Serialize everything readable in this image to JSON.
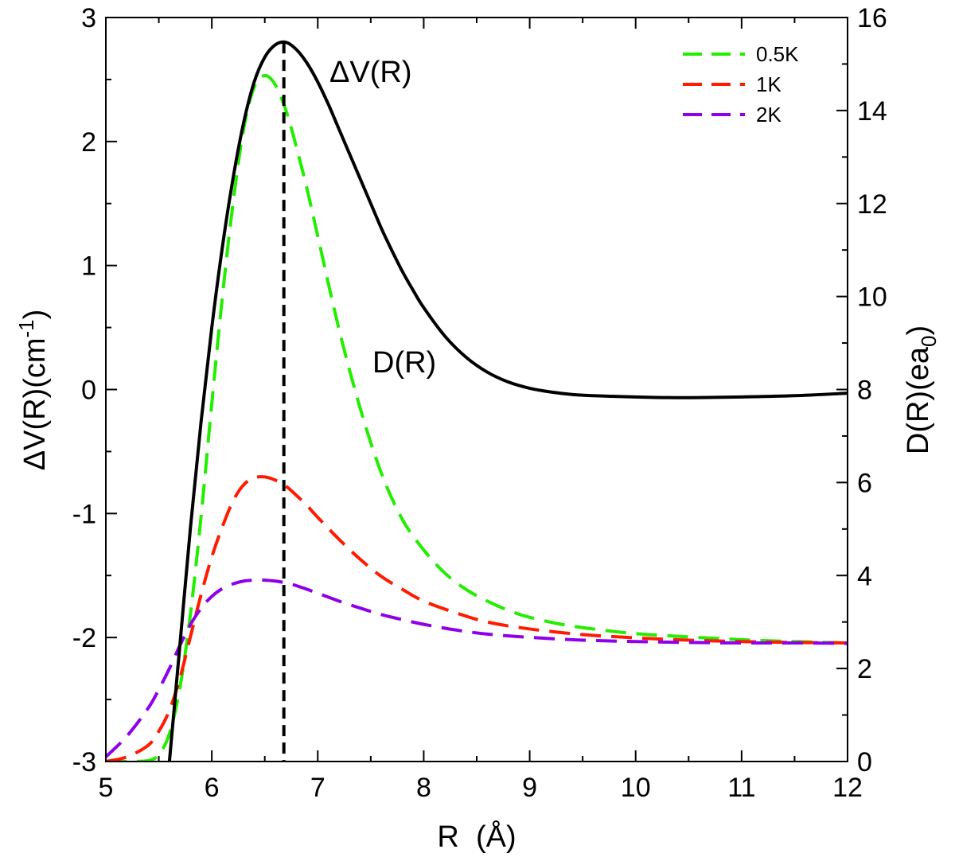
{
  "chart_data": {
    "type": "line",
    "xlabel": "R  (Å)",
    "ylabel_left": "ΔV(R)(cm",
    "ylabel_left_sup": "-1",
    "ylabel_left_end": ")",
    "ylabel_right": "D(R)(ea",
    "ylabel_right_sub": "0",
    "ylabel_right_end": ")",
    "xlim": [
      5,
      12
    ],
    "ylim_left": [
      -3,
      3
    ],
    "ylim_right": [
      0,
      16
    ],
    "x_ticks": [
      5,
      6,
      7,
      8,
      9,
      10,
      11,
      12
    ],
    "y_left_ticks": [
      -3,
      -2,
      -1,
      0,
      1,
      2,
      3
    ],
    "y_right_ticks": [
      0,
      2,
      4,
      6,
      8,
      10,
      12,
      14,
      16
    ],
    "legend_position": "top-right",
    "annotations": {
      "dv": "ΔV(R)",
      "d": "D(R)"
    },
    "vertical_marker_x": 6.68,
    "series": [
      {
        "label": "ΔV(R)",
        "axis": "left",
        "color": "#000000",
        "style": "solid",
        "x": [
          5.6,
          5.7,
          5.8,
          5.9,
          6.0,
          6.1,
          6.2,
          6.3,
          6.4,
          6.5,
          6.6,
          6.7,
          6.8,
          6.9,
          7.0,
          7.1,
          7.2,
          7.3,
          7.4,
          7.5,
          7.6,
          7.7,
          7.8,
          7.9,
          8.0,
          8.2,
          8.4,
          8.6,
          8.8,
          9.0,
          9.2,
          9.4,
          9.6,
          9.8,
          10.0,
          10.3,
          10.6,
          11.0,
          11.5,
          12.0
        ],
        "y": [
          -3.0,
          -2.05,
          -1.1,
          -0.25,
          0.5,
          1.15,
          1.7,
          2.15,
          2.48,
          2.68,
          2.78,
          2.8,
          2.74,
          2.63,
          2.48,
          2.3,
          2.1,
          1.9,
          1.7,
          1.5,
          1.3,
          1.12,
          0.95,
          0.8,
          0.66,
          0.43,
          0.26,
          0.14,
          0.06,
          0.01,
          -0.02,
          -0.04,
          -0.05,
          -0.055,
          -0.06,
          -0.065,
          -0.065,
          -0.06,
          -0.05,
          -0.03
        ]
      },
      {
        "label": "0.5K",
        "axis": "right",
        "color": "#22ee00",
        "style": "dashed",
        "x": [
          5.0,
          5.2,
          5.4,
          5.5,
          5.6,
          5.7,
          5.8,
          5.9,
          6.0,
          6.1,
          6.2,
          6.3,
          6.4,
          6.5,
          6.6,
          6.7,
          6.8,
          6.9,
          7.0,
          7.2,
          7.4,
          7.6,
          7.8,
          8.0,
          8.2,
          8.4,
          8.6,
          8.8,
          9.0,
          9.3,
          9.6,
          10.0,
          10.5,
          11.0,
          11.5,
          12.0
        ],
        "y": [
          0.0,
          0.0,
          0.02,
          0.15,
          0.6,
          1.6,
          3.2,
          5.3,
          7.7,
          10.0,
          12.0,
          13.6,
          14.5,
          14.75,
          14.55,
          14.0,
          13.2,
          12.3,
          11.3,
          9.3,
          7.6,
          6.2,
          5.2,
          4.55,
          4.05,
          3.7,
          3.45,
          3.25,
          3.1,
          2.95,
          2.85,
          2.75,
          2.68,
          2.62,
          2.58,
          2.55
        ]
      },
      {
        "label": "1K",
        "axis": "right",
        "color": "#ff1a00",
        "style": "dashed",
        "x": [
          5.0,
          5.2,
          5.4,
          5.5,
          5.6,
          5.7,
          5.8,
          5.9,
          6.0,
          6.1,
          6.2,
          6.3,
          6.4,
          6.5,
          6.6,
          6.7,
          6.8,
          6.9,
          7.0,
          7.2,
          7.4,
          7.6,
          7.8,
          8.0,
          8.3,
          8.6,
          9.0,
          9.5,
          10.0,
          10.5,
          11.0,
          11.5,
          12.0
        ],
        "y": [
          0.0,
          0.1,
          0.35,
          0.65,
          1.1,
          1.8,
          2.7,
          3.6,
          4.4,
          5.05,
          5.6,
          5.95,
          6.1,
          6.12,
          6.05,
          5.92,
          5.72,
          5.5,
          5.25,
          4.78,
          4.35,
          3.98,
          3.7,
          3.45,
          3.2,
          3.0,
          2.85,
          2.73,
          2.66,
          2.61,
          2.58,
          2.56,
          2.55
        ]
      },
      {
        "label": "2K",
        "axis": "right",
        "color": "#8f00ea",
        "style": "dashed",
        "x": [
          5.0,
          5.2,
          5.4,
          5.5,
          5.6,
          5.7,
          5.8,
          5.9,
          6.0,
          6.1,
          6.2,
          6.3,
          6.4,
          6.5,
          6.6,
          6.7,
          6.8,
          7.0,
          7.2,
          7.4,
          7.6,
          7.8,
          8.0,
          8.3,
          8.6,
          9.0,
          9.5,
          10.0,
          10.5,
          11.0,
          11.5,
          12.0
        ],
        "y": [
          0.1,
          0.55,
          1.15,
          1.55,
          2.0,
          2.5,
          2.95,
          3.3,
          3.55,
          3.72,
          3.82,
          3.88,
          3.9,
          3.9,
          3.88,
          3.84,
          3.78,
          3.62,
          3.45,
          3.3,
          3.16,
          3.05,
          2.95,
          2.83,
          2.74,
          2.67,
          2.61,
          2.58,
          2.56,
          2.55,
          2.55,
          2.54
        ]
      }
    ]
  }
}
